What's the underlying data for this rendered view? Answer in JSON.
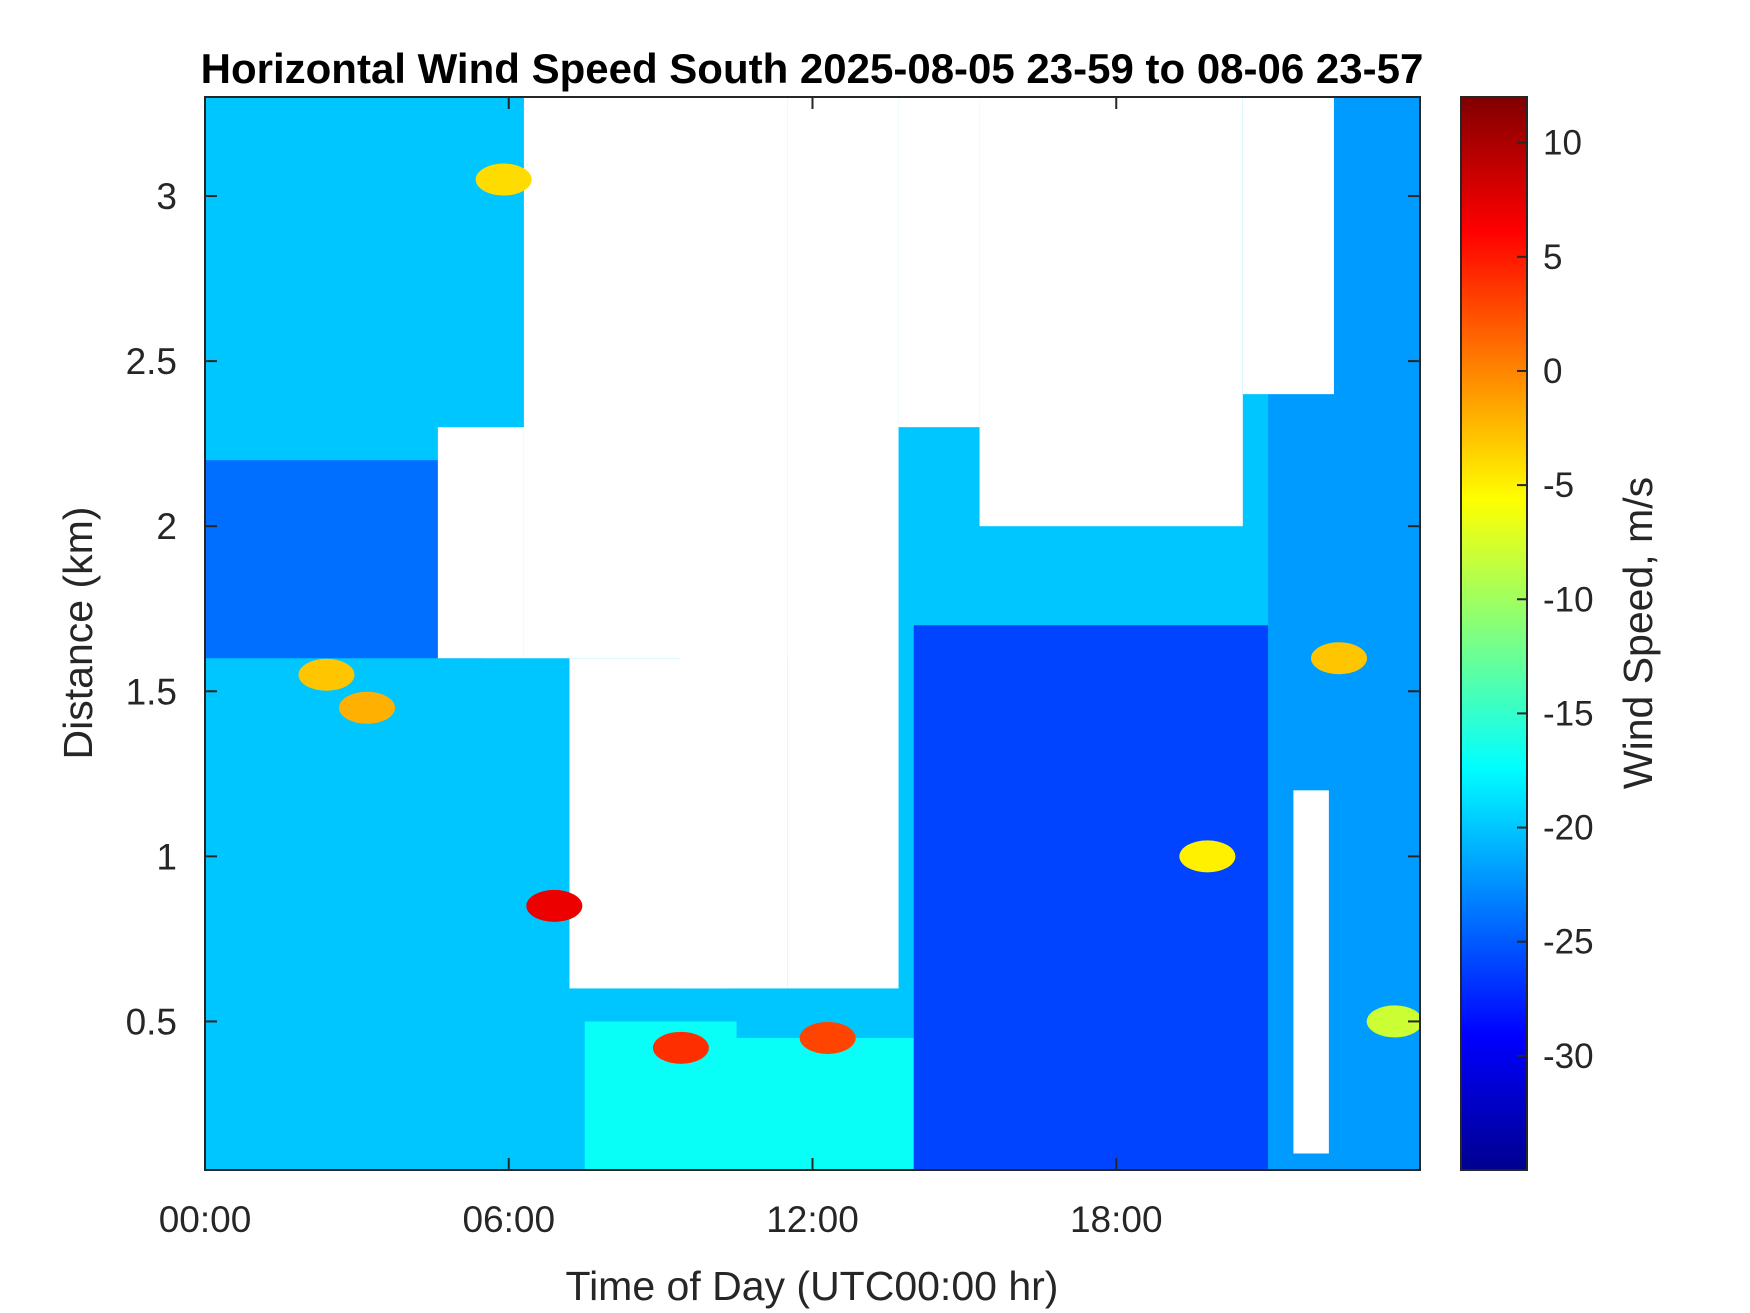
{
  "chart_data": {
    "type": "heatmap",
    "title": "Horizontal Wind Speed South 2025-08-05 23-59 to 08-06 23-57",
    "xlabel": "Time of Day (UTC00:00 hr)",
    "ylabel": "Distance (km)",
    "xlim": [
      0,
      24
    ],
    "ylim": [
      0.05,
      3.3
    ],
    "x_ticks": [
      {
        "value": 0,
        "label": "00:00"
      },
      {
        "value": 6,
        "label": "06:00"
      },
      {
        "value": 12,
        "label": "12:00"
      },
      {
        "value": 18,
        "label": "18:00"
      }
    ],
    "y_ticks": [
      {
        "value": 0.5,
        "label": "0.5"
      },
      {
        "value": 1,
        "label": "1"
      },
      {
        "value": 1.5,
        "label": "1.5"
      },
      {
        "value": 2,
        "label": "2"
      },
      {
        "value": 2.5,
        "label": "2.5"
      },
      {
        "value": 3,
        "label": "3"
      }
    ],
    "colorbar": {
      "label": "Wind Speed, m/s",
      "range": [
        -35,
        12
      ],
      "colormap": "jet",
      "ticks": [
        {
          "value": 10,
          "label": "10"
        },
        {
          "value": 5,
          "label": "5"
        },
        {
          "value": 0,
          "label": "0"
        },
        {
          "value": -5,
          "label": "-5"
        },
        {
          "value": -10,
          "label": "-10"
        },
        {
          "value": -15,
          "label": "-15"
        },
        {
          "value": -20,
          "label": "-20"
        },
        {
          "value": -25,
          "label": "-25"
        },
        {
          "value": -30,
          "label": "-30"
        }
      ]
    },
    "grid": false,
    "missing_data_color": "#ffffff",
    "regions": [
      {
        "x": [
          0,
          24
        ],
        "y": [
          0.05,
          3.3
        ],
        "speed": -20
      },
      {
        "x": [
          0,
          5.5
        ],
        "y": [
          1.6,
          2.2
        ],
        "speed": -24
      },
      {
        "x": [
          7.5,
          10.5
        ],
        "y": [
          0.05,
          0.5
        ],
        "speed": -17
      },
      {
        "x": [
          10.5,
          14
        ],
        "y": [
          0.05,
          0.45
        ],
        "speed": -17
      },
      {
        "x": [
          14,
          21
        ],
        "y": [
          0.05,
          1.7
        ],
        "speed": -26
      },
      {
        "x": [
          21,
          24
        ],
        "y": [
          0.05,
          3.3
        ],
        "speed": -22
      }
    ],
    "missing_regions": [
      {
        "x": [
          6.3,
          11.5
        ],
        "y": [
          1.6,
          3.3
        ]
      },
      {
        "x": [
          7.2,
          10.3
        ],
        "y": [
          0.6,
          1.6
        ]
      },
      {
        "x": [
          9.4,
          11.5
        ],
        "y": [
          0.6,
          3.3
        ]
      },
      {
        "x": [
          11.5,
          13.7
        ],
        "y": [
          0.6,
          3.3
        ]
      },
      {
        "x": [
          13.7,
          15.3
        ],
        "y": [
          2.3,
          3.3
        ]
      },
      {
        "x": [
          15.3,
          20.5
        ],
        "y": [
          2.0,
          3.3
        ]
      },
      {
        "x": [
          20.5,
          22.3
        ],
        "y": [
          2.4,
          3.3
        ]
      },
      {
        "x": [
          4.6,
          6.3
        ],
        "y": [
          1.6,
          2.3
        ]
      },
      {
        "x": [
          21.5,
          22.2
        ],
        "y": [
          0.1,
          1.2
        ]
      }
    ],
    "features": [
      {
        "t": 6.9,
        "d": 0.85,
        "speed": 7
      },
      {
        "t": 9.4,
        "d": 0.42,
        "speed": 4
      },
      {
        "t": 12.3,
        "d": 0.45,
        "speed": 3
      },
      {
        "t": 3.2,
        "d": 1.45,
        "speed": -2
      },
      {
        "t": 2.4,
        "d": 1.55,
        "speed": -3
      },
      {
        "t": 5.9,
        "d": 3.05,
        "speed": -4
      },
      {
        "t": 22.4,
        "d": 1.6,
        "speed": -3
      },
      {
        "t": 19.8,
        "d": 1.0,
        "speed": -5
      },
      {
        "t": 23.5,
        "d": 0.5,
        "speed": -8
      }
    ]
  }
}
